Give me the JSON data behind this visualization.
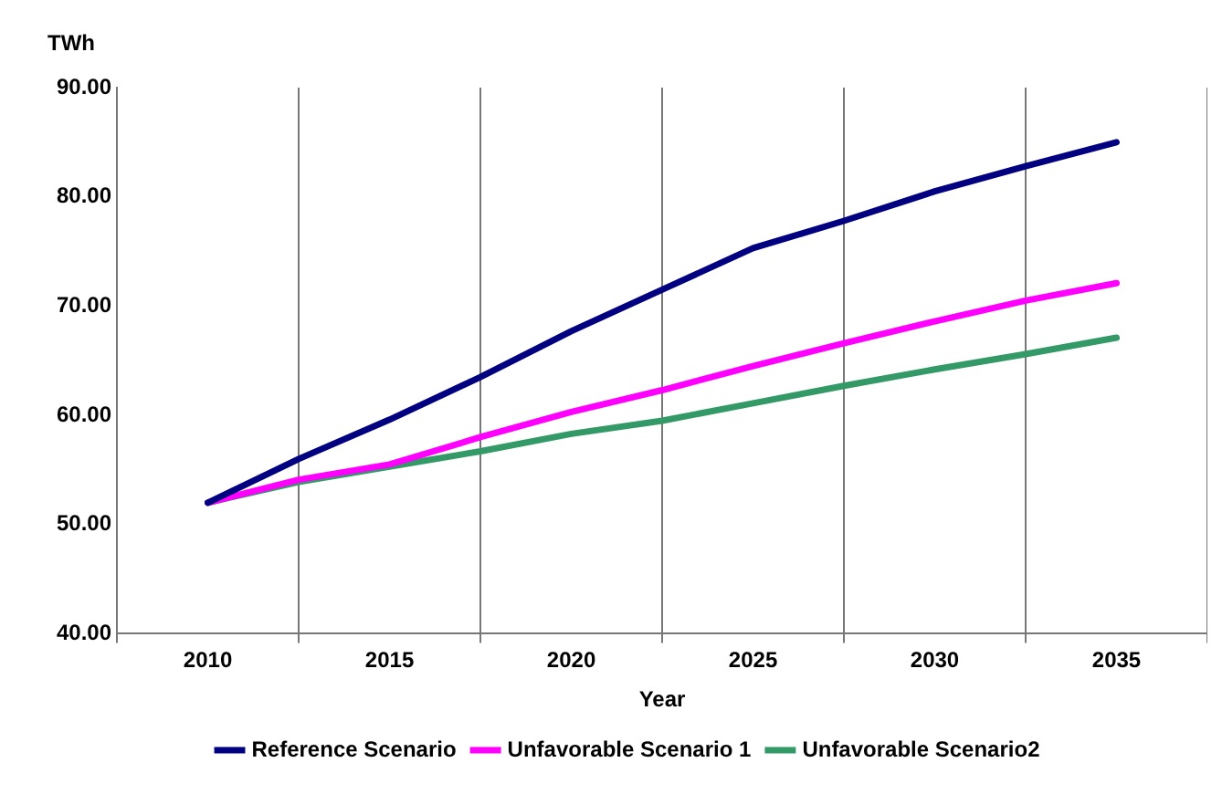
{
  "chart_data": {
    "type": "line",
    "xlabel": "Year",
    "ylabel": "TWh",
    "x": [
      2010,
      2012.5,
      2015,
      2017.5,
      2020,
      2022.5,
      2025,
      2027.5,
      2030,
      2032.5,
      2035
    ],
    "series": [
      {
        "name": "Reference Scenario",
        "color": "#000080",
        "values": [
          52,
          56,
          59.6,
          63.5,
          67.7,
          71.5,
          75.3,
          77.8,
          80.5,
          82.8,
          85
        ]
      },
      {
        "name": "Unfavorable Scenario 1",
        "color": "#ff00ff",
        "values": [
          52,
          54.1,
          55.5,
          58,
          60.3,
          62.3,
          64.5,
          66.6,
          68.6,
          70.5,
          72.1
        ]
      },
      {
        "name": "Unfavorable Scenario2",
        "color": "#339966",
        "values": [
          52,
          53.9,
          55.3,
          56.7,
          58.3,
          59.5,
          61.1,
          62.7,
          64.2,
          65.6,
          67.1
        ]
      }
    ],
    "xlim": [
      2007.5,
      2037.5
    ],
    "xticks": [
      2010,
      2015,
      2020,
      2025,
      2030,
      2035
    ],
    "ylim": [
      40,
      90
    ],
    "yticks": [
      {
        "value": 40,
        "label": "40.00"
      },
      {
        "value": 50,
        "label": "50.00"
      },
      {
        "value": 60,
        "label": "60.00"
      },
      {
        "value": 70,
        "label": "70.00"
      },
      {
        "value": 80,
        "label": "80.00"
      },
      {
        "value": 90,
        "label": "90.00"
      }
    ],
    "grid": "x",
    "legend": "bottom",
    "marker": "none",
    "line_style": "solid"
  }
}
